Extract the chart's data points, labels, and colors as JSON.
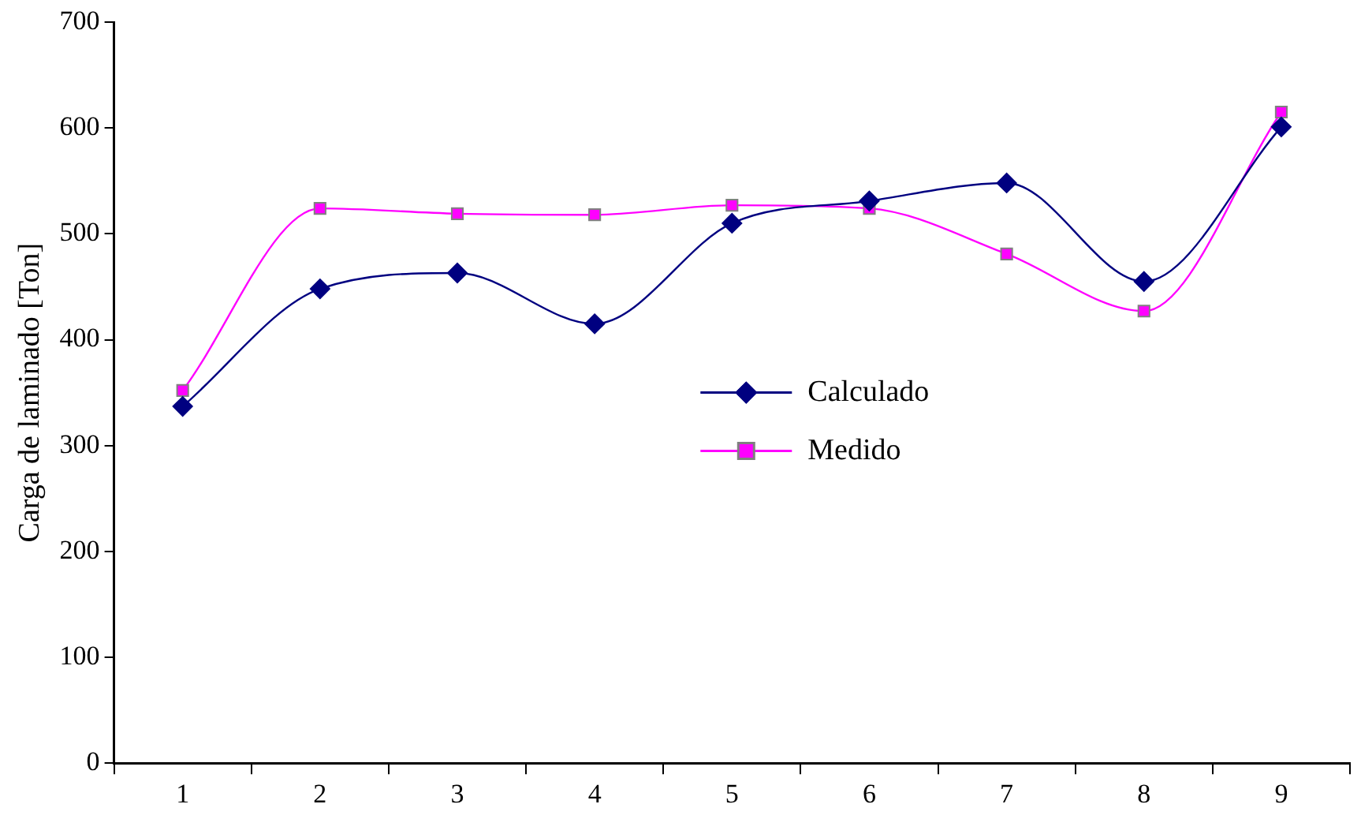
{
  "chart_data": {
    "type": "line",
    "ylabel": "Carga de laminado [Ton]",
    "categories": [
      "1",
      "2",
      "3",
      "4",
      "5",
      "6",
      "7",
      "8",
      "9"
    ],
    "series": [
      {
        "name": "Calculado",
        "color": "#000080",
        "marker": "diamond",
        "values": [
          337,
          448,
          463,
          415,
          510,
          531,
          548,
          455,
          601
        ]
      },
      {
        "name": "Medido",
        "color": "#ff00ff",
        "marker": "square",
        "values": [
          352,
          524,
          519,
          518,
          527,
          524,
          481,
          427,
          615
        ]
      }
    ],
    "ylim": [
      0,
      700
    ],
    "yticks": [
      0,
      100,
      200,
      300,
      400,
      500,
      600,
      700
    ],
    "grid": false,
    "legend": "center"
  }
}
